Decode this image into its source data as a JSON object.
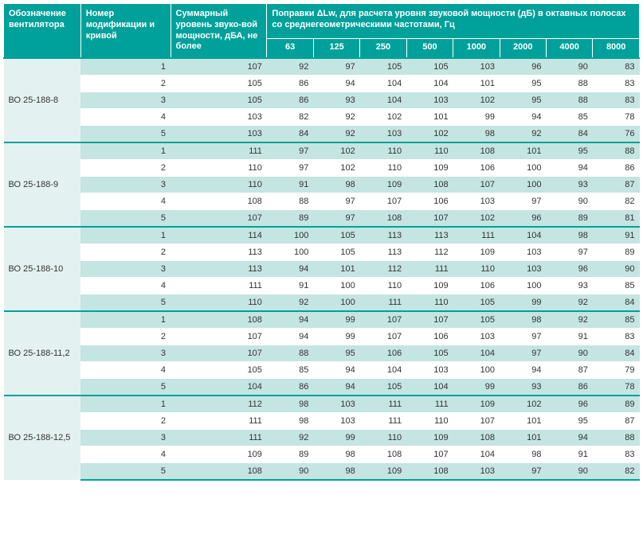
{
  "type": "table",
  "header": {
    "fan": "Обозначение вентилятора",
    "mod": "Номер модификации и кривой",
    "sum": "Суммарный уровень звуко-вой мощности, дБА, не более",
    "corrections": "Поправки ΔLw, для расчета уровня звуковой мощности (дБ) в октавных полосах со среднегеометрическими частотами, Гц",
    "freqs": [
      "63",
      "125",
      "250",
      "500",
      "1000",
      "2000",
      "4000",
      "8000"
    ]
  },
  "colors": {
    "header_bg": "#00a19a",
    "header_fg": "#ffffff",
    "row_alt_a": "#c4e5e2",
    "row_alt_b": "#ffffff",
    "border": "#ffffff",
    "group_sep": "#00a19a"
  },
  "groups": [
    {
      "fan": "ВО 25-188-8",
      "rows": [
        {
          "mod": "1",
          "sum": "107",
          "v": [
            "92",
            "97",
            "105",
            "105",
            "103",
            "96",
            "90",
            "83"
          ]
        },
        {
          "mod": "2",
          "sum": "105",
          "v": [
            "86",
            "94",
            "104",
            "104",
            "101",
            "95",
            "88",
            "83"
          ]
        },
        {
          "mod": "3",
          "sum": "105",
          "v": [
            "86",
            "93",
            "104",
            "103",
            "102",
            "95",
            "88",
            "83"
          ]
        },
        {
          "mod": "4",
          "sum": "103",
          "v": [
            "82",
            "92",
            "102",
            "101",
            "99",
            "94",
            "85",
            "78"
          ]
        },
        {
          "mod": "5",
          "sum": "103",
          "v": [
            "84",
            "92",
            "103",
            "102",
            "98",
            "92",
            "84",
            "76"
          ]
        }
      ]
    },
    {
      "fan": "ВО 25-188-9",
      "rows": [
        {
          "mod": "1",
          "sum": "111",
          "v": [
            "97",
            "102",
            "110",
            "110",
            "108",
            "101",
            "95",
            "88"
          ]
        },
        {
          "mod": "2",
          "sum": "110",
          "v": [
            "97",
            "102",
            "110",
            "109",
            "106",
            "100",
            "94",
            "86"
          ]
        },
        {
          "mod": "3",
          "sum": "110",
          "v": [
            "91",
            "98",
            "109",
            "108",
            "107",
            "100",
            "93",
            "87"
          ]
        },
        {
          "mod": "4",
          "sum": "108",
          "v": [
            "88",
            "97",
            "107",
            "106",
            "103",
            "97",
            "90",
            "82"
          ]
        },
        {
          "mod": "5",
          "sum": "107",
          "v": [
            "89",
            "97",
            "108",
            "107",
            "102",
            "96",
            "89",
            "81"
          ]
        }
      ]
    },
    {
      "fan": "ВО 25-188-10",
      "rows": [
        {
          "mod": "1",
          "sum": "114",
          "v": [
            "100",
            "105",
            "113",
            "113",
            "111",
            "104",
            "98",
            "91"
          ]
        },
        {
          "mod": "2",
          "sum": "113",
          "v": [
            "100",
            "105",
            "113",
            "112",
            "109",
            "103",
            "97",
            "89"
          ]
        },
        {
          "mod": "3",
          "sum": "113",
          "v": [
            "94",
            "101",
            "112",
            "111",
            "110",
            "103",
            "96",
            "90"
          ]
        },
        {
          "mod": "4",
          "sum": "111",
          "v": [
            "91",
            "100",
            "110",
            "109",
            "106",
            "100",
            "93",
            "85"
          ]
        },
        {
          "mod": "5",
          "sum": "110",
          "v": [
            "92",
            "100",
            "111",
            "110",
            "105",
            "99",
            "92",
            "84"
          ]
        }
      ]
    },
    {
      "fan": "ВО 25-188-11,2",
      "rows": [
        {
          "mod": "1",
          "sum": "108",
          "v": [
            "94",
            "99",
            "107",
            "107",
            "105",
            "98",
            "92",
            "85"
          ]
        },
        {
          "mod": "2",
          "sum": "107",
          "v": [
            "94",
            "99",
            "107",
            "106",
            "103",
            "97",
            "91",
            "83"
          ]
        },
        {
          "mod": "3",
          "sum": "107",
          "v": [
            "88",
            "95",
            "106",
            "105",
            "104",
            "97",
            "90",
            "84"
          ]
        },
        {
          "mod": "4",
          "sum": "105",
          "v": [
            "85",
            "94",
            "104",
            "103",
            "100",
            "94",
            "87",
            "79"
          ]
        },
        {
          "mod": "5",
          "sum": "104",
          "v": [
            "86",
            "94",
            "105",
            "104",
            "99",
            "93",
            "86",
            "78"
          ]
        }
      ]
    },
    {
      "fan": "ВО 25-188-12,5",
      "rows": [
        {
          "mod": "1",
          "sum": "112",
          "v": [
            "98",
            "103",
            "111",
            "111",
            "109",
            "102",
            "96",
            "89"
          ]
        },
        {
          "mod": "2",
          "sum": "111",
          "v": [
            "98",
            "103",
            "111",
            "110",
            "107",
            "101",
            "95",
            "87"
          ]
        },
        {
          "mod": "3",
          "sum": "111",
          "v": [
            "92",
            "99",
            "110",
            "109",
            "108",
            "101",
            "94",
            "88"
          ]
        },
        {
          "mod": "4",
          "sum": "109",
          "v": [
            "89",
            "98",
            "108",
            "107",
            "104",
            "98",
            "91",
            "83"
          ]
        },
        {
          "mod": "5",
          "sum": "108",
          "v": [
            "90",
            "98",
            "109",
            "108",
            "103",
            "97",
            "90",
            "82"
          ]
        }
      ]
    }
  ]
}
